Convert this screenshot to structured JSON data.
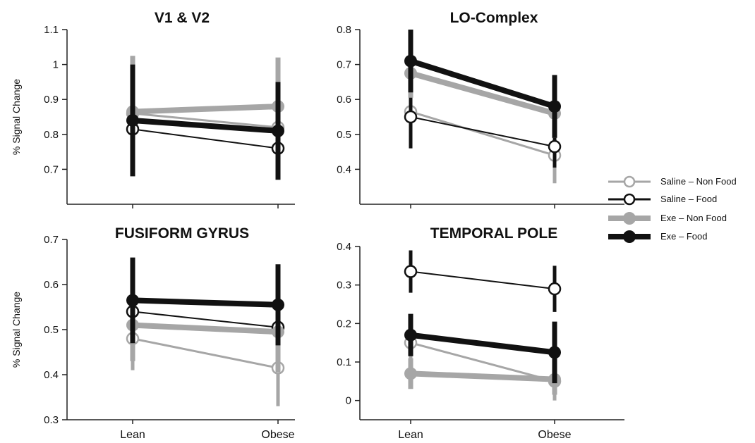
{
  "chart_data": [
    {
      "type": "line",
      "title": "V1 & V2",
      "ylabel": "% Signal Change",
      "categories": [
        "Lean",
        "Obese"
      ],
      "ylim": [
        0.6,
        1.1
      ],
      "yticks": [
        "0.7",
        "0.8",
        "0.9",
        "1",
        "1.1"
      ],
      "series": [
        {
          "name": "Saline – Non Food",
          "values": [
            0.86,
            0.82
          ],
          "errors": [
            0.06,
            0.06
          ]
        },
        {
          "name": "Saline – Food",
          "values": [
            0.815,
            0.76
          ],
          "errors": [
            0.1,
            0.07
          ]
        },
        {
          "name": "Exe – Non Food",
          "values": [
            0.865,
            0.88
          ],
          "errors": [
            0.16,
            0.14
          ]
        },
        {
          "name": "Exe – Food",
          "values": [
            0.84,
            0.81
          ],
          "errors": [
            0.16,
            0.14
          ]
        }
      ]
    },
    {
      "type": "line",
      "title": "LO-Complex",
      "ylabel": "",
      "categories": [
        "Lean",
        "Obese"
      ],
      "ylim": [
        0.3,
        0.8
      ],
      "yticks": [
        "0.4",
        "0.5",
        "0.6",
        "0.7",
        "0.8"
      ],
      "series": [
        {
          "name": "Saline – Non Food",
          "values": [
            0.565,
            0.44
          ],
          "errors": [
            0.07,
            0.08
          ]
        },
        {
          "name": "Saline – Food",
          "values": [
            0.55,
            0.465
          ],
          "errors": [
            0.09,
            0.06
          ]
        },
        {
          "name": "Exe – Non Food",
          "values": [
            0.675,
            0.56
          ],
          "errors": [
            0.07,
            0.07
          ]
        },
        {
          "name": "Exe – Food",
          "values": [
            0.71,
            0.58
          ],
          "errors": [
            0.09,
            0.09
          ]
        }
      ]
    },
    {
      "type": "line",
      "title": "FUSIFORM GYRUS",
      "ylabel": "% Signal Change",
      "categories": [
        "Lean",
        "Obese"
      ],
      "ylim": [
        0.3,
        0.7
      ],
      "yticks": [
        "0.3",
        "0.4",
        "0.5",
        "0.6",
        "0.7"
      ],
      "series": [
        {
          "name": "Saline – Non Food",
          "values": [
            0.48,
            0.415
          ],
          "errors": [
            0.07,
            0.085
          ]
        },
        {
          "name": "Saline – Food",
          "values": [
            0.54,
            0.505
          ],
          "errors": [
            0.07,
            0.06
          ]
        },
        {
          "name": "Exe – Non Food",
          "values": [
            0.51,
            0.495
          ],
          "errors": [
            0.08,
            0.09
          ]
        },
        {
          "name": "Exe – Food",
          "values": [
            0.565,
            0.555
          ],
          "errors": [
            0.095,
            0.09
          ]
        }
      ]
    },
    {
      "type": "line",
      "title": "TEMPORAL POLE",
      "ylabel": "",
      "categories": [
        "Lean",
        "Obese"
      ],
      "ylim": [
        -0.05,
        0.4
      ],
      "yticks": [
        "0",
        "0.1",
        "0.2",
        "0.3",
        "0.4"
      ],
      "series": [
        {
          "name": "Saline – Non Food",
          "values": [
            0.15,
            0.05
          ],
          "errors": [
            0.05,
            0.05
          ]
        },
        {
          "name": "Saline – Food",
          "values": [
            0.335,
            0.29
          ],
          "errors": [
            0.055,
            0.06
          ]
        },
        {
          "name": "Exe – Non Food",
          "values": [
            0.07,
            0.055
          ],
          "errors": [
            0.04,
            0.04
          ]
        },
        {
          "name": "Exe – Food",
          "values": [
            0.17,
            0.125
          ],
          "errors": [
            0.055,
            0.08
          ]
        }
      ]
    }
  ],
  "legend": {
    "placement": "right",
    "entries": [
      {
        "label": "Saline – Non Food",
        "color": "#a6a6a6",
        "marker": "open-circle",
        "line": "thin"
      },
      {
        "label": "Saline – Food",
        "color": "#111111",
        "marker": "open-circle",
        "line": "thin"
      },
      {
        "label": "Exe – Non Food",
        "color": "#a6a6a6",
        "marker": "filled-circle",
        "line": "thick"
      },
      {
        "label": "Exe – Food",
        "color": "#111111",
        "marker": "filled-circle",
        "line": "thick"
      }
    ]
  },
  "colors": {
    "saline_non_food": "#a6a6a6",
    "saline_food": "#111111",
    "exe_non_food": "#a6a6a6",
    "exe_food": "#111111",
    "axis": "#222222"
  }
}
